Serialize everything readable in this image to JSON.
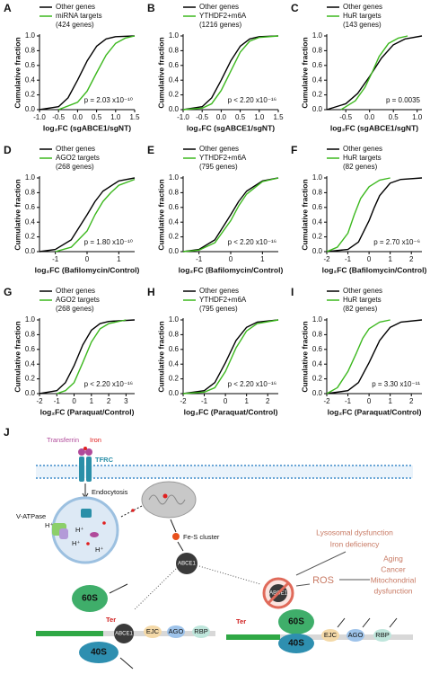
{
  "chart_data": [
    {
      "type": "line",
      "panel": "A",
      "xlabel": "log₂FC (sgABCE1/sgNT)",
      "ylabel": "Cumulative fraction",
      "annotation": "p = 2.03 x10⁻¹⁰",
      "xlim": [
        -1,
        1.5
      ],
      "xticks": [
        {
          "value": -1,
          "label": "-1.0"
        },
        -0.5,
        {
          "value": 0,
          "label": "0.0"
        },
        0.5,
        {
          "value": 1,
          "label": "1.0"
        },
        1.5
      ],
      "ylim": [
        0,
        1
      ],
      "yticks": [
        {
          "value": 0,
          "label": "0.0"
        },
        0.2,
        0.4,
        0.6,
        0.8,
        {
          "value": 1,
          "label": "1.0"
        }
      ],
      "series": [
        {
          "name": "Other genes",
          "color": "#000000",
          "x": [
            -1,
            -0.5,
            -0.25,
            0,
            0.25,
            0.5,
            0.75,
            1,
            1.5
          ],
          "values": [
            0,
            0.04,
            0.16,
            0.4,
            0.66,
            0.86,
            0.96,
            0.99,
            1
          ]
        },
        {
          "name": "miRNA targets",
          "subname": "(424 genes)",
          "color": "#3cb81e",
          "x": [
            -0.5,
            0,
            0.25,
            0.5,
            0.75,
            1,
            1.25,
            1.5
          ],
          "values": [
            0,
            0.1,
            0.25,
            0.5,
            0.74,
            0.9,
            0.97,
            1
          ]
        }
      ]
    },
    {
      "type": "line",
      "panel": "B",
      "xlabel": "log₂FC (sgABCE1/sgNT)",
      "ylabel": "Cumulative fraction",
      "annotation": "p < 2.20 x10⁻¹⁶",
      "xlim": [
        -1,
        1.5
      ],
      "xticks": [
        {
          "value": -1,
          "label": "-1.0"
        },
        -0.5,
        {
          "value": 0,
          "label": "0.0"
        },
        0.5,
        {
          "value": 1,
          "label": "1.0"
        },
        1.5
      ],
      "ylim": [
        0,
        1
      ],
      "yticks": [
        {
          "value": 0,
          "label": "0.0"
        },
        0.2,
        0.4,
        0.6,
        0.8,
        {
          "value": 1,
          "label": "1.0"
        }
      ],
      "series": [
        {
          "name": "Other genes",
          "color": "#000000",
          "x": [
            -1,
            -0.5,
            -0.25,
            0,
            0.25,
            0.5,
            0.75,
            1,
            1.5
          ],
          "values": [
            0,
            0.04,
            0.16,
            0.4,
            0.66,
            0.86,
            0.96,
            0.99,
            1
          ]
        },
        {
          "name": "YTHDF2+m6A",
          "subname": "(1216 genes)",
          "color": "#3cb81e",
          "x": [
            -1,
            -0.5,
            -0.25,
            0,
            0.25,
            0.5,
            0.75,
            1,
            1.5
          ],
          "values": [
            0,
            0.02,
            0.08,
            0.26,
            0.52,
            0.78,
            0.93,
            0.98,
            1
          ]
        }
      ]
    },
    {
      "type": "line",
      "panel": "C",
      "xlabel": "log₂FC (sgABCE1/sgNT)",
      "ylabel": "Cumulative fraction",
      "annotation": "p = 0.0035",
      "xlim": [
        -0.9,
        1.1
      ],
      "xticks": [
        -0.5,
        {
          "value": 0,
          "label": "0.0"
        },
        0.5,
        {
          "value": 1,
          "label": "1.0"
        }
      ],
      "ylim": [
        0,
        1
      ],
      "yticks": [
        {
          "value": 0,
          "label": "0.0"
        },
        0.2,
        0.4,
        0.6,
        0.8,
        {
          "value": 1,
          "label": "1.0"
        }
      ],
      "series": [
        {
          "name": "Other genes",
          "color": "#000000",
          "x": [
            -0.9,
            -0.5,
            -0.25,
            0,
            0.25,
            0.5,
            0.75,
            1.1
          ],
          "values": [
            0,
            0.08,
            0.22,
            0.45,
            0.7,
            0.88,
            0.96,
            1
          ]
        },
        {
          "name": "HuR targets",
          "subname": "(143 genes)",
          "color": "#3cb81e",
          "x": [
            -0.6,
            -0.3,
            -0.1,
            0.05,
            0.2,
            0.4,
            0.6,
            0.8
          ],
          "values": [
            0,
            0.12,
            0.3,
            0.5,
            0.72,
            0.9,
            0.97,
            1
          ]
        }
      ]
    },
    {
      "type": "line",
      "panel": "D",
      "xlabel": "log₂FC (Bafilomycin/Control)",
      "ylabel": "Cumulative fraction",
      "annotation": "p = 1.80 x10⁻¹⁰",
      "xlim": [
        -1.5,
        1.5
      ],
      "xticks": [
        -1,
        0,
        1
      ],
      "ylim": [
        0,
        1
      ],
      "yticks": [
        {
          "value": 0,
          "label": "0.0"
        },
        0.2,
        0.4,
        0.6,
        0.8,
        {
          "value": 1,
          "label": "1.0"
        }
      ],
      "series": [
        {
          "name": "Other genes",
          "color": "#000000",
          "x": [
            -1.5,
            -1,
            -0.5,
            0,
            0.25,
            0.5,
            1,
            1.5
          ],
          "values": [
            0,
            0.03,
            0.16,
            0.5,
            0.68,
            0.82,
            0.96,
            1
          ]
        },
        {
          "name": "AGO2 targets",
          "subname": "(268 genes)",
          "color": "#3cb81e",
          "x": [
            -1,
            -0.5,
            0,
            0.25,
            0.5,
            0.75,
            1,
            1.5
          ],
          "values": [
            0,
            0.06,
            0.28,
            0.5,
            0.68,
            0.8,
            0.9,
            0.98
          ]
        }
      ]
    },
    {
      "type": "line",
      "panel": "E",
      "xlabel": "log₂FC (Bafilomycin/Control)",
      "ylabel": "Cumulative fraction",
      "annotation": "p < 2.20 x10⁻¹⁶",
      "xlim": [
        -1.5,
        1.5
      ],
      "xticks": [
        -1,
        0,
        1
      ],
      "ylim": [
        0,
        1
      ],
      "yticks": [
        {
          "value": 0,
          "label": "0.0"
        },
        0.2,
        0.4,
        0.6,
        0.8,
        {
          "value": 1,
          "label": "1.0"
        }
      ],
      "series": [
        {
          "name": "Other genes",
          "color": "#000000",
          "x": [
            -1.5,
            -1,
            -0.5,
            0,
            0.25,
            0.5,
            1,
            1.5
          ],
          "values": [
            0,
            0.03,
            0.16,
            0.5,
            0.68,
            0.82,
            0.96,
            1
          ]
        },
        {
          "name": "YTHDF2+m6A",
          "subname": "(795 genes)",
          "color": "#3cb81e",
          "x": [
            -1.5,
            -1,
            -0.5,
            0,
            0.25,
            0.5,
            1,
            1.5
          ],
          "values": [
            0,
            0.02,
            0.12,
            0.42,
            0.62,
            0.78,
            0.95,
            1
          ]
        }
      ]
    },
    {
      "type": "line",
      "panel": "F",
      "xlabel": "log₂FC (Bafilomycin/Control)",
      "ylabel": "Cumulative fraction",
      "annotation": "p = 2.70 x10⁻⁶",
      "xlim": [
        -2,
        2.5
      ],
      "xticks": [
        -2,
        -1,
        0,
        1,
        2
      ],
      "ylim": [
        0,
        1
      ],
      "yticks": [
        {
          "value": 0,
          "label": "0.0"
        },
        0.2,
        0.4,
        0.6,
        0.8,
        {
          "value": 1,
          "label": "1.0"
        }
      ],
      "series": [
        {
          "name": "Other genes",
          "color": "#000000",
          "x": [
            -2,
            -1,
            -0.5,
            0,
            0.25,
            0.5,
            1,
            1.5,
            2.5
          ],
          "values": [
            0,
            0.03,
            0.13,
            0.42,
            0.6,
            0.76,
            0.93,
            0.98,
            1
          ]
        },
        {
          "name": "HuR targets",
          "subname": "(82 genes)",
          "color": "#3cb81e",
          "x": [
            -2,
            -1.5,
            -1,
            -0.7,
            -0.4,
            0,
            0.5,
            1
          ],
          "values": [
            0,
            0.06,
            0.25,
            0.5,
            0.72,
            0.88,
            0.97,
            1
          ]
        }
      ]
    },
    {
      "type": "line",
      "panel": "G",
      "xlabel": "log₂FC (Paraquat/Control)",
      "ylabel": "Cumulative fraction",
      "annotation": "p < 2.20 x10⁻¹⁶",
      "xlim": [
        -2,
        3.5
      ],
      "xticks": [
        -2,
        -1,
        0,
        1,
        2,
        3
      ],
      "ylim": [
        0,
        1
      ],
      "yticks": [
        {
          "value": 0,
          "label": "0.0"
        },
        0.2,
        0.4,
        0.6,
        0.8,
        {
          "value": 1,
          "label": "1.0"
        }
      ],
      "series": [
        {
          "name": "Other genes",
          "color": "#000000",
          "x": [
            -2,
            -1,
            -0.5,
            0,
            0.5,
            1,
            1.5,
            2,
            3.5
          ],
          "values": [
            0,
            0.04,
            0.15,
            0.38,
            0.66,
            0.86,
            0.95,
            0.98,
            1
          ]
        },
        {
          "name": "AGO2 targets",
          "subname": "(268 genes)",
          "color": "#3cb81e",
          "x": [
            -1,
            -0.5,
            0,
            0.5,
            1,
            1.5,
            2,
            3
          ],
          "values": [
            0,
            0.04,
            0.15,
            0.42,
            0.7,
            0.88,
            0.95,
            1
          ]
        }
      ]
    },
    {
      "type": "line",
      "panel": "H",
      "xlabel": "log₂FC (Paraquat/Control)",
      "ylabel": "Cumulative fraction",
      "annotation": "p < 2.20 x10⁻¹⁶",
      "xlim": [
        -2,
        2.5
      ],
      "xticks": [
        -2,
        -1,
        0,
        1,
        2
      ],
      "ylim": [
        0,
        1
      ],
      "yticks": [
        {
          "value": 0,
          "label": "0.0"
        },
        0.2,
        0.4,
        0.6,
        0.8,
        {
          "value": 1,
          "label": "1.0"
        }
      ],
      "series": [
        {
          "name": "Other genes",
          "color": "#000000",
          "x": [
            -2,
            -1,
            -0.5,
            0,
            0.5,
            1,
            1.5,
            2.5
          ],
          "values": [
            0,
            0.04,
            0.15,
            0.42,
            0.72,
            0.9,
            0.97,
            1
          ]
        },
        {
          "name": "YTHDF2+m6A",
          "subname": "(795 genes)",
          "color": "#3cb81e",
          "x": [
            -2,
            -1,
            -0.5,
            0,
            0.5,
            1,
            1.5,
            2.5
          ],
          "values": [
            0,
            0.02,
            0.08,
            0.3,
            0.62,
            0.85,
            0.95,
            1
          ]
        }
      ]
    },
    {
      "type": "line",
      "panel": "I",
      "xlabel": "log₂FC (Paraquat/Control)",
      "ylabel": "Cumulative fraction",
      "annotation": "p = 3.30 x10⁻¹¹",
      "xlim": [
        -2,
        2.5
      ],
      "xticks": [
        -2,
        -1,
        0,
        1,
        2
      ],
      "ylim": [
        0,
        1
      ],
      "yticks": [
        {
          "value": 0,
          "label": "0.0"
        },
        0.2,
        0.4,
        0.6,
        0.8,
        {
          "value": 1,
          "label": "1.0"
        }
      ],
      "series": [
        {
          "name": "Other genes",
          "color": "#000000",
          "x": [
            -2,
            -1,
            -0.5,
            0,
            0.5,
            1,
            1.5,
            2.5
          ],
          "values": [
            0,
            0.04,
            0.15,
            0.42,
            0.72,
            0.9,
            0.97,
            1
          ]
        },
        {
          "name": "HuR targets",
          "subname": "(82 genes)",
          "color": "#3cb81e",
          "x": [
            -2,
            -1.5,
            -1,
            -0.6,
            -0.3,
            0,
            0.5,
            1
          ],
          "values": [
            0,
            0.08,
            0.3,
            0.55,
            0.75,
            0.88,
            0.97,
            1
          ]
        }
      ]
    }
  ],
  "diagram": {
    "panel": "J",
    "transferrin": "Transferrin",
    "iron": "Iron",
    "receptor": "TFRC",
    "endocytosis": "Endocytosis",
    "pump": "V-ATPase",
    "protons": [
      "H⁺",
      "H⁺",
      "H⁺",
      "H⁺"
    ],
    "cluster": "Fe-S cluster",
    "abce1": [
      "ABCE1",
      "ABCE1",
      "ABCE1"
    ],
    "subunits": [
      "60S",
      "40S",
      "60S",
      "40S"
    ],
    "ter": [
      "Ter",
      "Ter"
    ],
    "factors": [
      "EJC",
      "AGO",
      "RBP",
      "EJC",
      "AGO",
      "RBP"
    ],
    "stresses": [
      "Lysosomal dysfunction",
      "Iron deficiency"
    ],
    "ros": "ROS",
    "conditions": [
      "Aging",
      "Cancer",
      "Mitochondrial",
      "dysfunction"
    ]
  }
}
